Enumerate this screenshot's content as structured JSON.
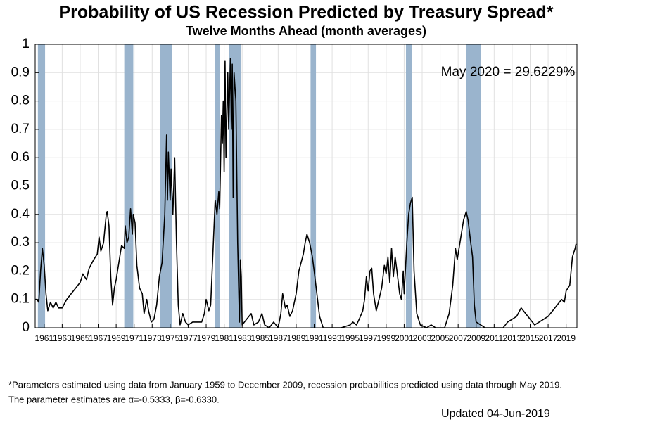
{
  "chart_data": {
    "type": "line",
    "title": "Probability of US Recession Predicted by Treasury Spread*",
    "subtitle": "Twelve Months Ahead (month averages)",
    "annotation": "May 2020 = 29.6229%",
    "footnote_lines": [
      "*Parameters estimated using data from January 1959 to December 2009, recession probabilities predicted using data through May 2019.",
      "The parameter estimates are α=-0.5333, β=-0.6330."
    ],
    "updated": "Updated 04-Jun-2019",
    "xlim": [
      1960,
      2020.2
    ],
    "ylim": [
      0,
      1
    ],
    "xticks": [
      1961,
      1963,
      1965,
      1967,
      1969,
      1971,
      1973,
      1975,
      1977,
      1979,
      1981,
      1983,
      1985,
      1987,
      1989,
      1991,
      1993,
      1995,
      1997,
      1999,
      2001,
      2003,
      2005,
      2007,
      2009,
      2011,
      2013,
      2015,
      2017,
      2019
    ],
    "yticks": [
      0,
      0.1,
      0.2,
      0.3,
      0.4,
      0.5,
      0.6,
      0.7,
      0.8,
      0.9,
      1
    ],
    "grid": true,
    "recession_color": "#9ab4cd",
    "recession_periods": [
      [
        1960.3,
        1961.1
      ],
      [
        1969.9,
        1970.9
      ],
      [
        1973.9,
        1975.2
      ],
      [
        1980.0,
        1980.5
      ],
      [
        1981.5,
        1982.9
      ],
      [
        1990.6,
        1991.2
      ],
      [
        2001.2,
        2001.9
      ],
      [
        2007.9,
        2009.5
      ]
    ],
    "series": [
      {
        "color": "#000000",
        "x": [
          1960.0,
          1960.2,
          1960.4,
          1960.6,
          1960.8,
          1961.0,
          1961.2,
          1961.4,
          1961.7,
          1962.0,
          1962.3,
          1962.6,
          1963.0,
          1963.5,
          1964.0,
          1964.5,
          1965.0,
          1965.3,
          1965.7,
          1966.0,
          1966.5,
          1966.9,
          1967.1,
          1967.3,
          1967.6,
          1967.9,
          1968.0,
          1968.2,
          1968.4,
          1968.6,
          1968.8,
          1969.0,
          1969.3,
          1969.6,
          1969.9,
          1970.0,
          1970.2,
          1970.4,
          1970.6,
          1970.8,
          1970.9,
          1971.1,
          1971.3,
          1971.6,
          1971.9,
          1972.1,
          1972.4,
          1972.6,
          1972.9,
          1973.2,
          1973.5,
          1973.8,
          1974.1,
          1974.4,
          1974.6,
          1974.7,
          1974.8,
          1975.0,
          1975.1,
          1975.3,
          1975.5,
          1975.7,
          1975.9,
          1976.1,
          1976.4,
          1976.7,
          1977.0,
          1977.5,
          1978.0,
          1978.5,
          1978.8,
          1979.0,
          1979.3,
          1979.5,
          1979.8,
          1980.0,
          1980.2,
          1980.4,
          1980.5,
          1980.7,
          1980.8,
          1980.9,
          1981.0,
          1981.1,
          1981.2,
          1981.4,
          1981.5,
          1981.7,
          1981.8,
          1981.9,
          1982.0,
          1982.1,
          1982.3,
          1982.5,
          1982.7,
          1982.8,
          1982.9,
          1983.0,
          1983.5,
          1984.0,
          1984.3,
          1984.8,
          1985.2,
          1985.5,
          1986.0,
          1986.5,
          1987.0,
          1987.3,
          1987.5,
          1987.8,
          1988.0,
          1988.3,
          1988.6,
          1989.0,
          1989.3,
          1989.8,
          1990.0,
          1990.2,
          1990.5,
          1990.8,
          1991.0,
          1991.3,
          1991.6,
          1992.0,
          1993.0,
          1994.0,
          1995.0,
          1995.3,
          1995.7,
          1996.0,
          1996.4,
          1996.6,
          1996.8,
          1997.0,
          1997.2,
          1997.4,
          1997.6,
          1997.9,
          1998.2,
          1998.5,
          1998.8,
          1999.0,
          1999.2,
          1999.4,
          1999.6,
          1999.8,
          2000.0,
          2000.2,
          2000.5,
          2000.7,
          2000.9,
          2001.0,
          2001.3,
          2001.5,
          2001.7,
          2001.9,
          2002.1,
          2002.4,
          2002.8,
          2003.5,
          2004.0,
          2004.5,
          2005.5,
          2006.0,
          2006.4,
          2006.7,
          2006.9,
          2007.2,
          2007.6,
          2007.9,
          2008.1,
          2008.4,
          2008.6,
          2008.8,
          2009.0,
          2009.5,
          2010.0,
          2011.0,
          2012.0,
          2012.5,
          2013.0,
          2013.5,
          2014.0,
          2014.5,
          2015.0,
          2015.5,
          2016.0,
          2016.5,
          2017.0,
          2017.5,
          2018.0,
          2018.5,
          2018.8,
          2019.0,
          2019.4,
          2019.7,
          2020.0,
          2020.1
        ],
        "values": [
          0.1,
          0.1,
          0.09,
          0.2,
          0.28,
          0.22,
          0.12,
          0.06,
          0.09,
          0.07,
          0.09,
          0.07,
          0.07,
          0.1,
          0.12,
          0.14,
          0.16,
          0.19,
          0.17,
          0.21,
          0.24,
          0.26,
          0.32,
          0.27,
          0.3,
          0.4,
          0.41,
          0.36,
          0.18,
          0.08,
          0.14,
          0.17,
          0.23,
          0.29,
          0.28,
          0.36,
          0.3,
          0.32,
          0.42,
          0.33,
          0.4,
          0.37,
          0.22,
          0.14,
          0.12,
          0.05,
          0.1,
          0.06,
          0.02,
          0.03,
          0.08,
          0.18,
          0.23,
          0.4,
          0.68,
          0.45,
          0.62,
          0.45,
          0.56,
          0.4,
          0.6,
          0.3,
          0.08,
          0.01,
          0.05,
          0.02,
          0.01,
          0.02,
          0.02,
          0.02,
          0.05,
          0.1,
          0.06,
          0.08,
          0.3,
          0.45,
          0.4,
          0.48,
          0.42,
          0.75,
          0.65,
          0.8,
          0.55,
          0.94,
          0.6,
          0.9,
          0.7,
          0.95,
          0.7,
          0.93,
          0.46,
          0.9,
          0.8,
          0.3,
          0.02,
          0.24,
          0.18,
          0.01,
          0.03,
          0.05,
          0.01,
          0.02,
          0.05,
          0.01,
          0.0,
          0.02,
          0.0,
          0.05,
          0.12,
          0.07,
          0.08,
          0.04,
          0.06,
          0.12,
          0.2,
          0.26,
          0.3,
          0.33,
          0.3,
          0.25,
          0.2,
          0.12,
          0.04,
          0.0,
          0.0,
          0.0,
          0.01,
          0.02,
          0.01,
          0.03,
          0.06,
          0.1,
          0.18,
          0.13,
          0.2,
          0.21,
          0.12,
          0.06,
          0.1,
          0.14,
          0.22,
          0.19,
          0.25,
          0.16,
          0.28,
          0.18,
          0.25,
          0.2,
          0.12,
          0.1,
          0.2,
          0.12,
          0.3,
          0.4,
          0.44,
          0.46,
          0.2,
          0.05,
          0.01,
          0.0,
          0.01,
          0.0,
          0.0,
          0.05,
          0.15,
          0.28,
          0.24,
          0.3,
          0.38,
          0.41,
          0.38,
          0.3,
          0.25,
          0.08,
          0.02,
          0.01,
          0.0,
          0.0,
          0.0,
          0.02,
          0.03,
          0.04,
          0.07,
          0.05,
          0.03,
          0.01,
          0.02,
          0.03,
          0.04,
          0.06,
          0.08,
          0.1,
          0.09,
          0.13,
          0.15,
          0.25,
          0.28,
          0.296
        ]
      }
    ]
  }
}
